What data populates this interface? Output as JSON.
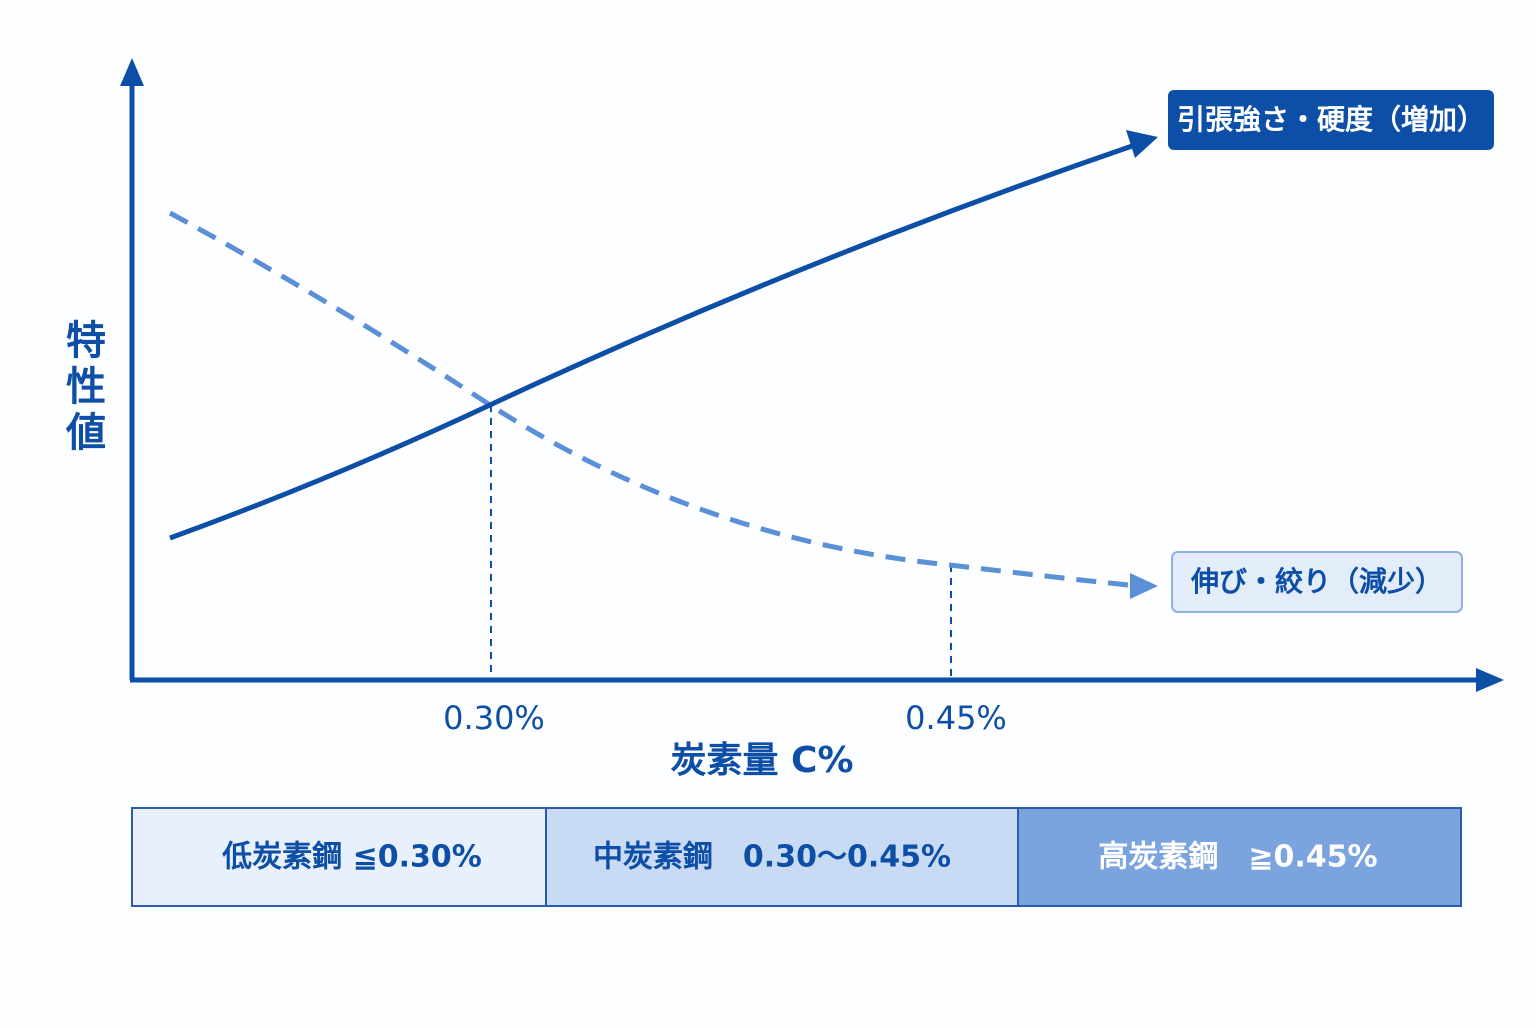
{
  "y_axis": {
    "label": "特性値"
  },
  "x_axis": {
    "label": "炭素量 C%",
    "markers": [
      "0.30%",
      "0.45%"
    ]
  },
  "curves": [
    {
      "label": "引張強さ・硬度（増加）"
    },
    {
      "label": "伸び・絞り（減少）"
    }
  ],
  "bands": [
    {
      "label": "低炭素鋼 ≦0.30%"
    },
    {
      "label": "中炭素鋼　0.30〜0.45%"
    },
    {
      "label": "高炭素鋼　≧0.45%"
    }
  ]
}
